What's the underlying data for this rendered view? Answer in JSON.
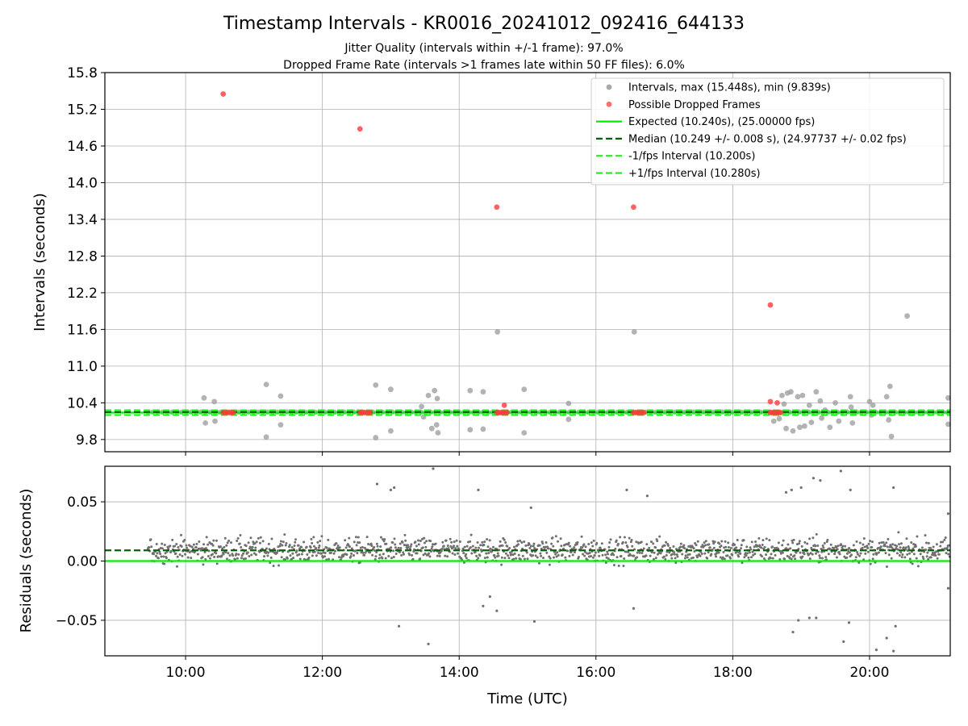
{
  "chart_data": {
    "type": "scatter",
    "title": "Timestamp Intervals - KR0016_20241012_092416_644133",
    "subtitle1": "Jitter Quality (intervals within +/-1 frame): 97.0%",
    "subtitle2": "Dropped Frame Rate (intervals >1 frames late within 50 FF files): 6.0%",
    "xlabel": "Time (UTC)",
    "x_ticks": [
      "10:00",
      "12:00",
      "14:00",
      "16:00",
      "18:00",
      "20:00"
    ],
    "x_tick_hours": [
      10,
      12,
      14,
      16,
      18,
      20
    ],
    "xlim_hours": [
      8.82,
      21.18
    ],
    "grid": true,
    "legend_position": "upper-right",
    "top_panel": {
      "ylabel": "Intervals (seconds)",
      "ylim": [
        9.6,
        15.8
      ],
      "y_ticks": [
        9.8,
        10.4,
        11.0,
        11.6,
        12.2,
        12.8,
        13.4,
        14.0,
        14.6,
        15.2,
        15.8
      ],
      "y_tick_labels": [
        "9.8",
        "10.4",
        "11.0",
        "11.6",
        "12.2",
        "12.8",
        "13.4",
        "14.0",
        "14.6",
        "15.2",
        "15.8"
      ],
      "legend": [
        {
          "label": "Intervals, max (15.448s), min (9.839s)",
          "kind": "marker",
          "color": "#999999"
        },
        {
          "label": "Possible Dropped Frames",
          "kind": "marker",
          "color": "#ff5555"
        },
        {
          "label": "Expected (10.240s), (25.00000 fps)",
          "kind": "solid",
          "color": "#00ee00"
        },
        {
          "label": "Median (10.249 +/- 0.008 s), (24.97737 +/- 0.02 fps)",
          "kind": "dashed",
          "color": "#006400"
        },
        {
          "label": "-1/fps Interval (10.200s)",
          "kind": "dashed",
          "color": "#22ee22"
        },
        {
          "label": "+1/fps Interval (10.280s)",
          "kind": "dashed",
          "color": "#22ee22"
        }
      ],
      "expected": 10.24,
      "median": 10.249,
      "minus_fps": 10.2,
      "plus_fps": 10.28,
      "interval_outliers": [
        [
          10.27,
          10.48
        ],
        [
          10.29,
          10.07
        ],
        [
          10.42,
          10.42
        ],
        [
          10.43,
          10.1
        ],
        [
          11.18,
          10.7
        ],
        [
          11.18,
          9.84
        ],
        [
          11.39,
          10.51
        ],
        [
          11.39,
          10.04
        ],
        [
          12.78,
          10.69
        ],
        [
          12.78,
          9.83
        ],
        [
          13.0,
          10.62
        ],
        [
          13.0,
          9.94
        ],
        [
          13.45,
          10.34
        ],
        [
          13.48,
          10.17
        ],
        [
          13.55,
          10.52
        ],
        [
          13.6,
          9.98
        ],
        [
          13.64,
          10.6
        ],
        [
          13.67,
          10.04
        ],
        [
          13.68,
          10.47
        ],
        [
          13.69,
          9.91
        ],
        [
          14.16,
          10.6
        ],
        [
          14.16,
          9.96
        ],
        [
          14.35,
          10.58
        ],
        [
          14.35,
          9.97
        ],
        [
          14.56,
          11.56
        ],
        [
          14.95,
          10.62
        ],
        [
          14.95,
          9.91
        ],
        [
          15.6,
          10.39
        ],
        [
          15.6,
          10.13
        ],
        [
          16.56,
          11.56
        ],
        [
          18.6,
          10.1
        ],
        [
          18.68,
          10.14
        ],
        [
          18.72,
          10.52
        ],
        [
          18.75,
          10.38
        ],
        [
          18.78,
          9.98
        ],
        [
          18.8,
          10.56
        ],
        [
          18.85,
          10.58
        ],
        [
          18.88,
          9.94
        ],
        [
          18.95,
          10.5
        ],
        [
          18.98,
          10.0
        ],
        [
          19.02,
          10.52
        ],
        [
          19.05,
          10.02
        ],
        [
          19.12,
          10.36
        ],
        [
          19.15,
          10.08
        ],
        [
          19.22,
          10.58
        ],
        [
          19.28,
          10.43
        ],
        [
          19.3,
          10.15
        ],
        [
          19.35,
          10.28
        ],
        [
          19.42,
          10.0
        ],
        [
          19.5,
          10.4
        ],
        [
          19.55,
          10.1
        ],
        [
          19.72,
          10.5
        ],
        [
          19.73,
          10.33
        ],
        [
          19.75,
          10.07
        ],
        [
          19.77,
          10.25
        ],
        [
          20.0,
          10.42
        ],
        [
          20.03,
          10.2
        ],
        [
          20.05,
          10.36
        ],
        [
          20.25,
          10.5
        ],
        [
          20.28,
          10.12
        ],
        [
          20.3,
          10.67
        ],
        [
          20.32,
          9.85
        ],
        [
          20.55,
          11.82
        ],
        [
          21.15,
          10.48
        ],
        [
          21.15,
          10.05
        ]
      ],
      "dropped_frames": [
        [
          10.55,
          15.45
        ],
        [
          12.55,
          14.88
        ],
        [
          14.55,
          13.6
        ],
        [
          16.55,
          13.6
        ],
        [
          18.55,
          12.0
        ],
        [
          14.66,
          10.36
        ],
        [
          18.55,
          10.42
        ],
        [
          18.65,
          10.4
        ],
        [
          10.55,
          10.24
        ],
        [
          10.58,
          10.24
        ],
        [
          10.61,
          10.24
        ],
        [
          10.64,
          10.24
        ],
        [
          10.67,
          10.24
        ],
        [
          10.7,
          10.24
        ],
        [
          12.55,
          10.24
        ],
        [
          12.58,
          10.24
        ],
        [
          12.61,
          10.24
        ],
        [
          12.64,
          10.24
        ],
        [
          12.67,
          10.24
        ],
        [
          12.7,
          10.24
        ],
        [
          14.55,
          10.24
        ],
        [
          14.58,
          10.24
        ],
        [
          14.61,
          10.24
        ],
        [
          14.64,
          10.24
        ],
        [
          14.67,
          10.24
        ],
        [
          14.7,
          10.24
        ],
        [
          16.55,
          10.24
        ],
        [
          16.58,
          10.24
        ],
        [
          16.61,
          10.24
        ],
        [
          16.64,
          10.24
        ],
        [
          16.67,
          10.24
        ],
        [
          16.7,
          10.24
        ],
        [
          18.55,
          10.24
        ],
        [
          18.58,
          10.24
        ],
        [
          18.61,
          10.24
        ],
        [
          18.64,
          10.24
        ],
        [
          18.67,
          10.24
        ],
        [
          18.7,
          10.24
        ]
      ]
    },
    "bottom_panel": {
      "ylabel": "Residuals (seconds)",
      "ylim": [
        -0.08,
        0.08
      ],
      "y_ticks": [
        -0.05,
        0.0,
        0.05
      ],
      "y_tick_labels": [
        "−0.05",
        "0.00",
        "0.05"
      ],
      "median_residual": 0.009,
      "expected_residual": 0.0,
      "residual_outliers": [
        [
          12.8,
          0.065
        ],
        [
          13.0,
          0.06
        ],
        [
          13.05,
          0.062
        ],
        [
          13.12,
          -0.055
        ],
        [
          13.55,
          -0.07
        ],
        [
          13.62,
          0.078
        ],
        [
          14.28,
          0.06
        ],
        [
          14.35,
          -0.038
        ],
        [
          14.45,
          -0.03
        ],
        [
          14.55,
          -0.042
        ],
        [
          15.1,
          -0.051
        ],
        [
          15.05,
          0.045
        ],
        [
          16.45,
          0.06
        ],
        [
          16.55,
          -0.04
        ],
        [
          16.75,
          0.055
        ],
        [
          18.78,
          0.058
        ],
        [
          18.86,
          0.06
        ],
        [
          18.88,
          -0.06
        ],
        [
          18.96,
          -0.05
        ],
        [
          19.0,
          0.062
        ],
        [
          19.12,
          -0.048
        ],
        [
          19.18,
          0.07
        ],
        [
          19.22,
          -0.048
        ],
        [
          19.28,
          0.068
        ],
        [
          19.58,
          0.076
        ],
        [
          19.62,
          -0.068
        ],
        [
          19.72,
          0.06
        ],
        [
          19.7,
          -0.052
        ],
        [
          20.1,
          -0.075
        ],
        [
          20.25,
          -0.065
        ],
        [
          20.35,
          0.062
        ],
        [
          20.38,
          -0.055
        ],
        [
          20.35,
          -0.076
        ],
        [
          21.15,
          0.04
        ],
        [
          21.15,
          -0.023
        ]
      ]
    }
  }
}
